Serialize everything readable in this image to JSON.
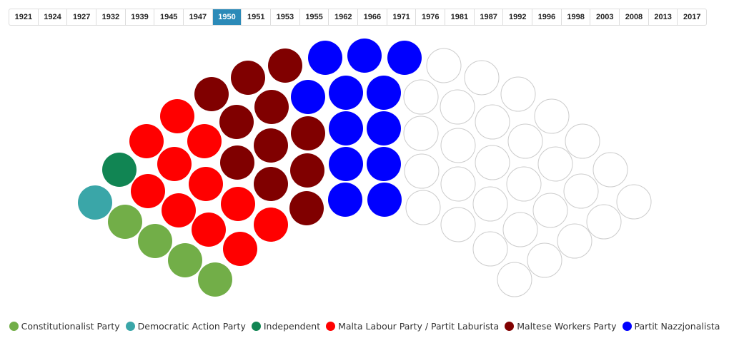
{
  "tabs": {
    "years": [
      "1921",
      "1924",
      "1927",
      "1932",
      "1939",
      "1945",
      "1947",
      "1950",
      "1951",
      "1953",
      "1955",
      "1962",
      "1966",
      "1971",
      "1976",
      "1981",
      "1987",
      "1992",
      "1996",
      "1998",
      "2003",
      "2008",
      "2013",
      "2017"
    ],
    "selected": 7
  },
  "chart_data": {
    "type": "parliament",
    "categories": [
      "Constitutionalist Party",
      "Democratic Action Party",
      "Independent",
      "Malta Labour Party / Partit Laburista",
      "Maltese Workers Party",
      "Partit Nazzjonalista"
    ],
    "values": [
      4,
      1,
      1,
      11,
      11,
      12
    ],
    "colors": [
      "#72ae48",
      "#3aa6a8",
      "#118553",
      "#ff0000",
      "#800000",
      "#0000ff"
    ]
  }
}
